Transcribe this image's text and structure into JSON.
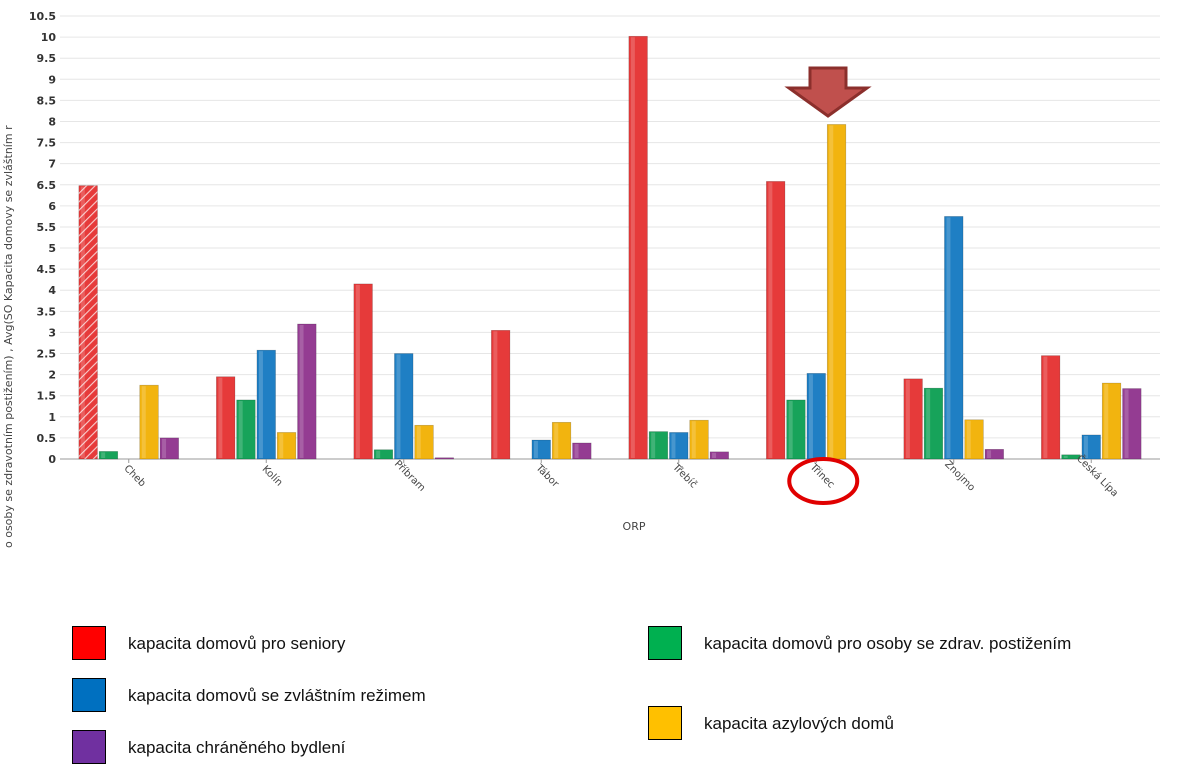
{
  "chart_data": {
    "type": "bar",
    "ylabel": "o osoby se zdravotním postižením) , Avg(SO Kapacita domovy se zvláštním r",
    "xlabel": "ORP",
    "ylim": [
      0,
      10.5
    ],
    "yticks": [
      "0",
      "0.5",
      "1",
      "1.5",
      "2",
      "2.5",
      "3",
      "3.5",
      "4",
      "4.5",
      "5",
      "5.5",
      "6",
      "6.5",
      "7",
      "7.5",
      "8",
      "8.5",
      "9",
      "9.5",
      "10",
      "10.5"
    ],
    "categories": [
      "Cheb",
      "Kolín",
      "Příbram",
      "Tábor",
      "Třebíč",
      "Třinec",
      "Znojmo",
      "Česká Lípa"
    ],
    "series": [
      {
        "key": "seniors",
        "color": "#e63a3a",
        "values": [
          6.48,
          1.95,
          4.15,
          3.05,
          10.02,
          6.58,
          1.9,
          2.45
        ]
      },
      {
        "key": "disabled",
        "color": "#17a35a",
        "values": [
          0.18,
          1.4,
          0.22,
          0,
          0.65,
          1.4,
          1.68,
          0.1
        ]
      },
      {
        "key": "special",
        "color": "#1f7fc4",
        "values": [
          0,
          2.58,
          2.5,
          0.45,
          0.63,
          2.03,
          5.75,
          0.57
        ]
      },
      {
        "key": "asylum",
        "color": "#f2b40f",
        "values": [
          1.75,
          0.63,
          0.8,
          0.87,
          0.92,
          7.93,
          0.93,
          1.8
        ]
      },
      {
        "key": "sheltered",
        "color": "#943c92",
        "values": [
          0.5,
          3.2,
          0.03,
          0.38,
          0.17,
          0,
          0.23,
          1.67
        ]
      }
    ],
    "highlighted_category": "Třinec",
    "hatched_bar": {
      "category": "Cheb",
      "series": "seniors"
    }
  },
  "legend": [
    {
      "name": "legend-seniors",
      "label": "kapacita domovů pro seniory",
      "color": "#ff0000"
    },
    {
      "name": "legend-special",
      "label": "kapacita domovů se zvláštním režimem",
      "color": "#0070c0"
    },
    {
      "name": "legend-sheltered",
      "label": "kapacita chráněného bydlení",
      "color": "#7030a0"
    },
    {
      "name": "legend-disabled",
      "label": "kapacita domovů pro osoby se zdrav. postižením",
      "color": "#00b050"
    },
    {
      "name": "legend-asylum",
      "label": "kapacita azylových domů",
      "color": "#ffc000"
    }
  ],
  "annotations": {
    "arrow_color": "#c0504d",
    "circle_color": "#e00000"
  }
}
